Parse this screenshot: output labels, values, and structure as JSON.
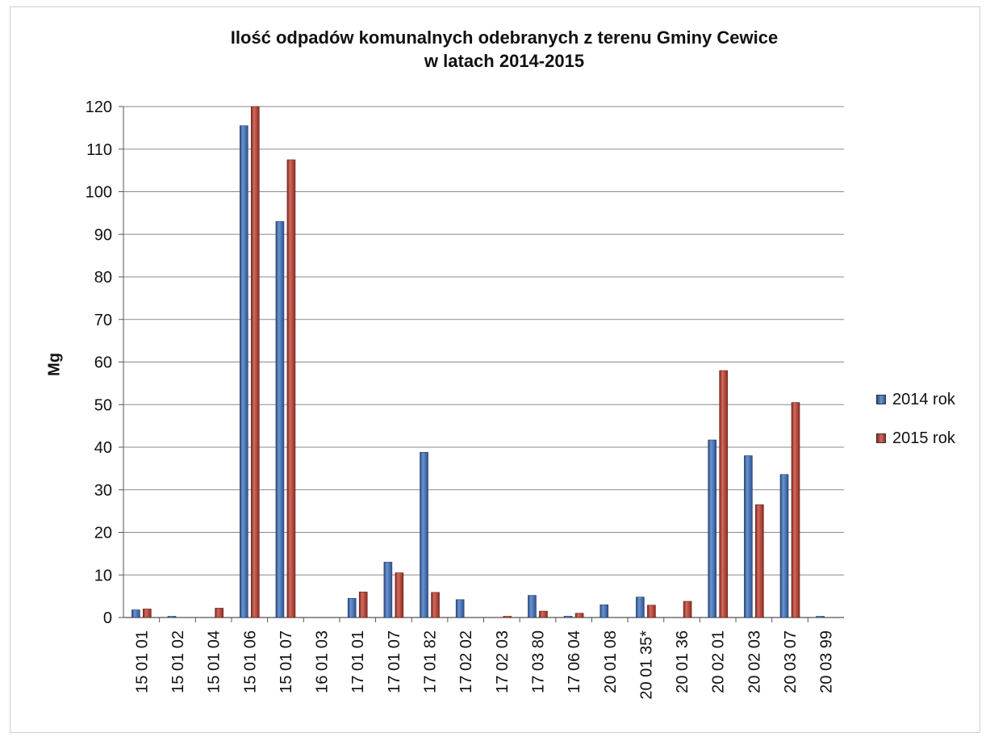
{
  "chart_data": {
    "type": "bar",
    "title": "Ilość odpadów komunalnych odebranych z terenu Gminy Cewice w latach 2014-2015",
    "title_lines": [
      "Ilość odpadów komunalnych odebranych z terenu Gminy Cewice",
      "w latach 2014-2015"
    ],
    "xlabel": "",
    "ylabel": "Mg",
    "ylim": [
      0,
      120
    ],
    "yticks": [
      0,
      10,
      20,
      30,
      40,
      50,
      60,
      70,
      80,
      90,
      100,
      110,
      120
    ],
    "grid": true,
    "legend_position": "right",
    "categories": [
      "15 01 01",
      "15 01 02",
      "15 01 04",
      "15 01 06",
      "15 01 07",
      "16 01 03",
      "17 01 01",
      "17 01 07",
      "17 01 82",
      "17 02 02",
      "17 02 03",
      "17 03 80",
      "17 06 04",
      "20 01 08",
      "20 01 35*",
      "20 01 36",
      "20 02 01",
      "20 02 03",
      "20 03 07",
      "20 03 99"
    ],
    "series": [
      {
        "name": "2014 rok",
        "color": "#3b6fc0",
        "values": [
          1.8,
          0.1,
          0,
          115.5,
          93,
          0,
          4.5,
          13,
          38.8,
          4.2,
          0,
          5.2,
          0.3,
          3,
          4.8,
          0,
          41.7,
          38,
          33.6,
          0.2
        ]
      },
      {
        "name": "2015 rok",
        "color": "#c0392b",
        "values": [
          2,
          0,
          2.2,
          120.5,
          107.5,
          0,
          6,
          10.5,
          5.9,
          0,
          0.2,
          1.5,
          1,
          0,
          2.9,
          3.8,
          58,
          26.5,
          50.5,
          0
        ]
      }
    ]
  }
}
